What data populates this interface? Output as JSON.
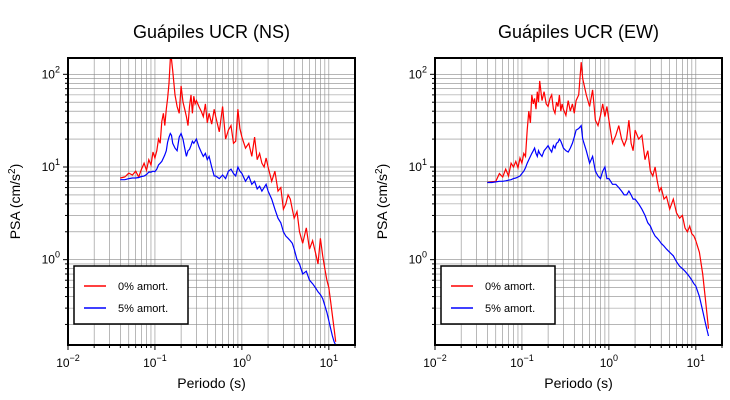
{
  "chart_data": [
    {
      "type": "line",
      "title": "Guápiles UCR (NS)",
      "xlabel": "Periodo (s)",
      "ylabel_main": "PSA (cm/s",
      "ylabel_sup": "2",
      "ylabel_end": ")",
      "xscale": "log",
      "yscale": "log",
      "xlim": [
        0.01,
        20
      ],
      "ylim": [
        0.12,
        150
      ],
      "grid": true,
      "legend": "bottom-left",
      "x_ticks": [
        {
          "base": "10",
          "exp": "−2"
        },
        {
          "base": "10",
          "exp": "−1"
        },
        {
          "base": "10",
          "exp": "0"
        },
        {
          "base": "10",
          "exp": "1"
        }
      ],
      "y_ticks": [
        {
          "base": "10",
          "exp": "0"
        },
        {
          "base": "10",
          "exp": "1"
        },
        {
          "base": "10",
          "exp": "2"
        }
      ],
      "series": [
        {
          "name": "0% amort.",
          "color": "#ff0000",
          "x": [
            0.04,
            0.045,
            0.05,
            0.055,
            0.06,
            0.065,
            0.07,
            0.075,
            0.08,
            0.085,
            0.09,
            0.095,
            0.1,
            0.105,
            0.11,
            0.115,
            0.12,
            0.125,
            0.13,
            0.135,
            0.14,
            0.145,
            0.15,
            0.155,
            0.16,
            0.17,
            0.18,
            0.19,
            0.2,
            0.21,
            0.22,
            0.23,
            0.24,
            0.25,
            0.26,
            0.27,
            0.28,
            0.29,
            0.3,
            0.32,
            0.34,
            0.36,
            0.38,
            0.4,
            0.42,
            0.45,
            0.48,
            0.5,
            0.55,
            0.6,
            0.65,
            0.7,
            0.75,
            0.8,
            0.85,
            0.9,
            0.95,
            1.0,
            1.1,
            1.2,
            1.3,
            1.4,
            1.5,
            1.6,
            1.7,
            1.8,
            1.9,
            2.0,
            2.2,
            2.4,
            2.6,
            2.8,
            3.0,
            3.2,
            3.4,
            3.6,
            3.8,
            4.0,
            4.3,
            4.6,
            5.0,
            5.5,
            6.0,
            6.5,
            7.0,
            7.5,
            8.0,
            8.5,
            9.0,
            9.5,
            10.0,
            10.5,
            11.0,
            11.5,
            12.0
          ],
          "y": [
            7.6,
            7.8,
            8.6,
            8.2,
            9.0,
            7.8,
            9.5,
            11.0,
            9.2,
            12.0,
            10.5,
            14.5,
            12.5,
            15.0,
            20.0,
            18.0,
            31.0,
            38.0,
            28.0,
            42.0,
            55.0,
            80.0,
            145.0,
            145.0,
            110.0,
            60.0,
            45.0,
            38.0,
            75.0,
            50.0,
            42.0,
            35.0,
            28.0,
            45.0,
            60.0,
            38.0,
            58.0,
            48.0,
            52.0,
            45.0,
            40.0,
            35.0,
            48.0,
            30.0,
            38.0,
            29.0,
            42.0,
            35.0,
            24.0,
            45.0,
            20.0,
            25.0,
            28.0,
            18.0,
            19.0,
            42.0,
            26.0,
            21.0,
            16.0,
            18.0,
            13.0,
            21.0,
            12.0,
            14.0,
            11.0,
            10.0,
            12.5,
            10.0,
            7.0,
            9.0,
            5.5,
            6.0,
            3.5,
            4.0,
            5.0,
            4.5,
            3.5,
            2.8,
            3.3,
            2.0,
            1.5,
            2.2,
            1.3,
            1.6,
            1.2,
            0.9,
            1.7,
            1.1,
            0.8,
            0.6,
            0.5,
            0.35,
            0.25,
            0.18,
            0.13
          ]
        },
        {
          "name": "5% amort.",
          "color": "#0000ff",
          "x": [
            0.04,
            0.045,
            0.05,
            0.055,
            0.06,
            0.065,
            0.07,
            0.075,
            0.08,
            0.085,
            0.09,
            0.095,
            0.1,
            0.105,
            0.11,
            0.115,
            0.12,
            0.125,
            0.13,
            0.135,
            0.14,
            0.145,
            0.15,
            0.155,
            0.16,
            0.17,
            0.18,
            0.19,
            0.2,
            0.21,
            0.22,
            0.23,
            0.24,
            0.25,
            0.26,
            0.27,
            0.28,
            0.29,
            0.3,
            0.32,
            0.34,
            0.36,
            0.38,
            0.4,
            0.42,
            0.45,
            0.48,
            0.5,
            0.55,
            0.6,
            0.65,
            0.7,
            0.75,
            0.8,
            0.85,
            0.9,
            0.95,
            1.0,
            1.1,
            1.2,
            1.3,
            1.4,
            1.5,
            1.6,
            1.7,
            1.8,
            1.9,
            2.0,
            2.2,
            2.4,
            2.6,
            2.8,
            3.0,
            3.2,
            3.4,
            3.6,
            3.8,
            4.0,
            4.3,
            4.6,
            5.0,
            5.5,
            6.0,
            6.5,
            7.0,
            7.5,
            8.0,
            8.5,
            9.0,
            9.5,
            10.0,
            10.5,
            11.0,
            11.5,
            12.0
          ],
          "y": [
            7.3,
            7.3,
            7.5,
            7.6,
            7.6,
            7.7,
            7.9,
            8.0,
            8.3,
            8.8,
            8.8,
            9.0,
            8.9,
            9.5,
            10.5,
            11.0,
            11.5,
            12.5,
            13.5,
            15.0,
            18.5,
            21.0,
            23.0,
            22.0,
            18.0,
            16.0,
            15.0,
            21.0,
            23.0,
            20.0,
            16.0,
            13.0,
            15.0,
            15.5,
            17.0,
            19.0,
            18.0,
            19.0,
            20.0,
            16.5,
            14.5,
            13.0,
            14.0,
            12.0,
            13.0,
            10.0,
            8.0,
            8.0,
            7.5,
            8.2,
            7.5,
            9.0,
            9.5,
            8.5,
            8.0,
            10.0,
            9.0,
            8.5,
            7.0,
            8.0,
            6.5,
            7.0,
            5.8,
            6.2,
            5.5,
            6.0,
            6.5,
            5.5,
            4.5,
            3.5,
            2.8,
            2.5,
            2.0,
            1.8,
            1.7,
            1.6,
            1.5,
            1.3,
            1.0,
            0.9,
            0.7,
            0.75,
            0.6,
            0.55,
            0.5,
            0.45,
            0.42,
            0.38,
            0.32,
            0.27,
            0.22,
            0.18,
            0.15,
            0.13,
            0.12
          ]
        }
      ]
    },
    {
      "type": "line",
      "title": "Guápiles UCR (EW)",
      "xlabel": "Periodo (s)",
      "ylabel_main": "PSA (cm/s",
      "ylabel_sup": "2",
      "ylabel_end": ")",
      "xscale": "log",
      "yscale": "log",
      "xlim": [
        0.01,
        20
      ],
      "ylim": [
        0.12,
        150
      ],
      "grid": true,
      "legend": "bottom-left",
      "x_ticks": [
        {
          "base": "10",
          "exp": "−2"
        },
        {
          "base": "10",
          "exp": "−1"
        },
        {
          "base": "10",
          "exp": "0"
        },
        {
          "base": "10",
          "exp": "1"
        }
      ],
      "y_ticks": [
        {
          "base": "10",
          "exp": "0"
        },
        {
          "base": "10",
          "exp": "1"
        },
        {
          "base": "10",
          "exp": "2"
        }
      ],
      "series": [
        {
          "name": "0% amort.",
          "color": "#ff0000",
          "x": [
            0.04,
            0.045,
            0.05,
            0.055,
            0.06,
            0.065,
            0.07,
            0.075,
            0.08,
            0.085,
            0.09,
            0.095,
            0.1,
            0.105,
            0.11,
            0.115,
            0.12,
            0.125,
            0.13,
            0.135,
            0.14,
            0.145,
            0.15,
            0.155,
            0.16,
            0.17,
            0.18,
            0.19,
            0.2,
            0.21,
            0.22,
            0.23,
            0.24,
            0.25,
            0.26,
            0.27,
            0.28,
            0.29,
            0.3,
            0.32,
            0.34,
            0.36,
            0.38,
            0.4,
            0.42,
            0.45,
            0.48,
            0.5,
            0.55,
            0.6,
            0.65,
            0.7,
            0.75,
            0.8,
            0.85,
            0.9,
            0.95,
            1.0,
            1.1,
            1.2,
            1.3,
            1.4,
            1.5,
            1.6,
            1.7,
            1.8,
            1.9,
            2.0,
            2.2,
            2.4,
            2.6,
            2.8,
            3.0,
            3.2,
            3.4,
            3.6,
            3.8,
            4.0,
            4.3,
            4.6,
            5.0,
            5.5,
            6.0,
            6.5,
            7.0,
            7.5,
            8.0,
            8.5,
            9.0,
            9.5,
            10.0,
            11.0,
            12.0,
            13.0,
            14.0
          ],
          "y": [
            6.8,
            6.9,
            7.0,
            8.5,
            7.8,
            9.5,
            8.0,
            11.0,
            10.0,
            11.5,
            9.8,
            12.5,
            11.0,
            14.0,
            13.0,
            25.0,
            40.0,
            30.0,
            60.0,
            48.0,
            55.0,
            42.0,
            65.0,
            50.0,
            85.0,
            52.0,
            65.0,
            48.0,
            45.0,
            55.0,
            60.0,
            42.0,
            38.0,
            50.0,
            45.0,
            60.0,
            40.0,
            48.0,
            42.0,
            36.0,
            52.0,
            40.0,
            48.0,
            38.0,
            52.0,
            60.0,
            135.0,
            90.0,
            60.0,
            45.0,
            68.0,
            32.0,
            28.0,
            36.0,
            48.0,
            35.0,
            45.0,
            32.0,
            18.0,
            22.0,
            28.0,
            20.0,
            17.0,
            20.0,
            32.0,
            18.0,
            15.0,
            25.0,
            20.0,
            22.0,
            12.0,
            15.0,
            9.0,
            8.0,
            10.0,
            7.0,
            5.5,
            6.0,
            4.5,
            4.8,
            3.5,
            4.5,
            3.2,
            2.8,
            3.0,
            2.2,
            2.0,
            2.3,
            1.9,
            1.8,
            1.6,
            1.2,
            0.7,
            0.35,
            0.18
          ]
        },
        {
          "name": "5% amort.",
          "color": "#0000ff",
          "x": [
            0.04,
            0.045,
            0.05,
            0.055,
            0.06,
            0.065,
            0.07,
            0.075,
            0.08,
            0.085,
            0.09,
            0.095,
            0.1,
            0.105,
            0.11,
            0.115,
            0.12,
            0.125,
            0.13,
            0.135,
            0.14,
            0.145,
            0.15,
            0.155,
            0.16,
            0.17,
            0.18,
            0.19,
            0.2,
            0.21,
            0.22,
            0.23,
            0.24,
            0.25,
            0.26,
            0.27,
            0.28,
            0.29,
            0.3,
            0.32,
            0.34,
            0.36,
            0.38,
            0.4,
            0.42,
            0.45,
            0.48,
            0.5,
            0.55,
            0.6,
            0.65,
            0.7,
            0.75,
            0.8,
            0.85,
            0.9,
            0.95,
            1.0,
            1.1,
            1.2,
            1.3,
            1.4,
            1.5,
            1.6,
            1.7,
            1.8,
            1.9,
            2.0,
            2.2,
            2.4,
            2.6,
            2.8,
            3.0,
            3.2,
            3.4,
            3.6,
            3.8,
            4.0,
            4.3,
            4.6,
            5.0,
            5.5,
            6.0,
            6.5,
            7.0,
            7.5,
            8.0,
            8.5,
            9.0,
            9.5,
            10.0,
            11.0,
            12.0,
            13.0,
            14.0
          ],
          "y": [
            6.8,
            6.8,
            6.9,
            7.0,
            7.0,
            7.1,
            7.2,
            7.3,
            7.5,
            7.6,
            7.8,
            8.0,
            8.5,
            9.0,
            9.8,
            11.0,
            12.0,
            13.0,
            14.0,
            15.0,
            16.0,
            14.0,
            13.0,
            15.0,
            14.0,
            13.0,
            15.0,
            16.0,
            17.0,
            15.5,
            14.5,
            17.0,
            16.0,
            18.0,
            18.5,
            20.0,
            19.0,
            17.5,
            16.0,
            15.0,
            14.5,
            16.0,
            18.0,
            21.0,
            25.0,
            26.0,
            28.0,
            20.0,
            15.0,
            11.0,
            13.0,
            9.0,
            8.0,
            7.5,
            9.0,
            10.0,
            7.5,
            7.5,
            6.5,
            6.5,
            6.0,
            5.5,
            5.0,
            5.0,
            5.5,
            5.0,
            4.5,
            4.5,
            4.0,
            3.5,
            3.0,
            2.5,
            2.3,
            2.0,
            1.8,
            1.7,
            1.6,
            1.5,
            1.4,
            1.3,
            1.2,
            1.1,
            0.95,
            0.85,
            0.8,
            0.75,
            0.7,
            0.65,
            0.6,
            0.55,
            0.52,
            0.4,
            0.28,
            0.2,
            0.15
          ]
        }
      ]
    }
  ]
}
